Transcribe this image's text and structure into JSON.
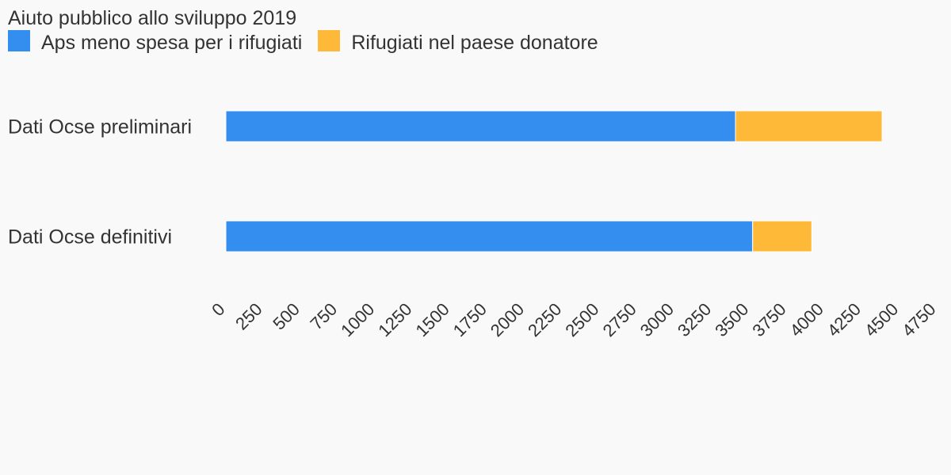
{
  "chart_data": {
    "type": "bar",
    "orientation": "horizontal",
    "stacked": true,
    "title": "Aiuto pubblico allo sviluppo 2019",
    "categories": [
      "Dati Ocse preliminari",
      "Dati Ocse definitivi"
    ],
    "series": [
      {
        "name": "Aps meno spesa per i rifugiati",
        "color": "#338eef",
        "values": [
          3405,
          3520
        ]
      },
      {
        "name": "Rifugiati nel paese donatore",
        "color": "#ffb939",
        "values": [
          980,
          395
        ]
      }
    ],
    "xlim": [
      0,
      4750
    ],
    "xticks": [
      "0",
      "250",
      "500",
      "750",
      "1000",
      "1250",
      "1500",
      "1750",
      "2000",
      "2250",
      "2500",
      "2750",
      "3000",
      "3250",
      "3500",
      "3750",
      "4000",
      "4250",
      "4500",
      "4750"
    ],
    "grid": false,
    "legend_position": "top-left"
  }
}
